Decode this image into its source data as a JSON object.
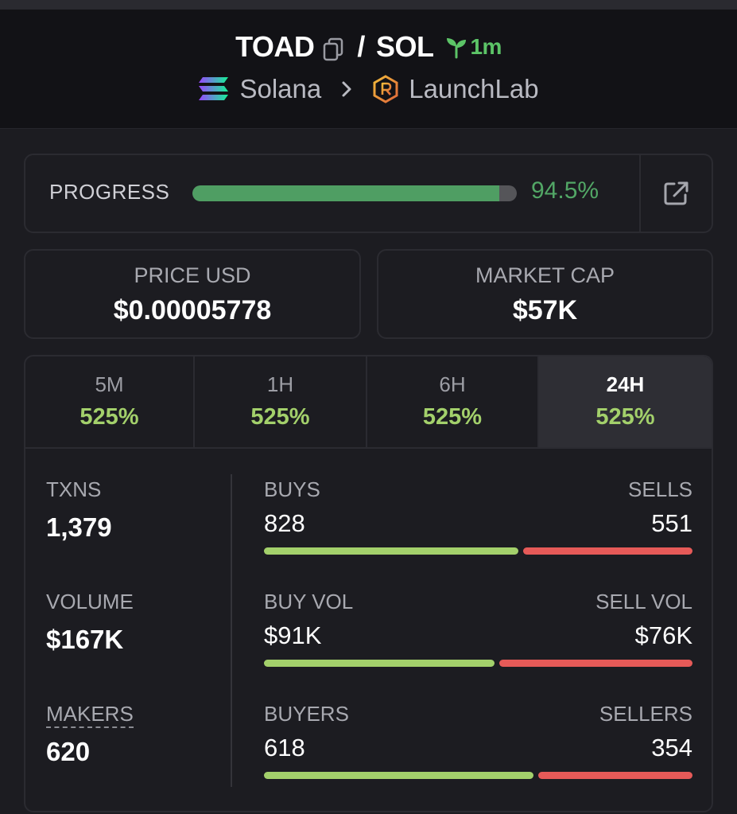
{
  "header": {
    "base_symbol": "TOAD",
    "separator": "/",
    "quote_symbol": "SOL",
    "age": "1m",
    "chain": "Solana",
    "dex": "LaunchLab",
    "icons": [
      "copy-icon",
      "seedling-icon",
      "solana-logo-icon",
      "chevron-right-icon",
      "launchlab-logo-icon"
    ]
  },
  "progress": {
    "label": "PROGRESS",
    "value_text": "94.5%",
    "fraction": 0.945,
    "fill_color": "#4f9e63",
    "external_icon": "external-link-icon"
  },
  "stats": {
    "price": {
      "label": "PRICE USD",
      "value": "$0.00005778"
    },
    "market_cap": {
      "label": "MARKET CAP",
      "value": "$57K"
    }
  },
  "timeframes": [
    {
      "label": "5M",
      "change": "525%",
      "active": false
    },
    {
      "label": "1H",
      "change": "525%",
      "active": false
    },
    {
      "label": "6H",
      "change": "525%",
      "active": false
    },
    {
      "label": "24H",
      "change": "525%",
      "active": true
    }
  ],
  "summary": {
    "txns": {
      "label": "TXNS",
      "value": "1,379"
    },
    "volume": {
      "label": "VOLUME",
      "value": "$167K"
    },
    "makers": {
      "label": "MAKERS",
      "value": "620"
    }
  },
  "metrics": {
    "buys_sells": {
      "left_label": "BUYS",
      "right_label": "SELLS",
      "left_value": "828",
      "right_value": "551",
      "left_share": 0.6
    },
    "vol": {
      "left_label": "BUY VOL",
      "right_label": "SELL VOL",
      "left_value": "$91K",
      "right_value": "$76K",
      "left_share": 0.545
    },
    "participants": {
      "left_label": "BUYERS",
      "right_label": "SELLERS",
      "left_value": "618",
      "right_value": "354",
      "left_share": 0.636
    }
  },
  "colors": {
    "positive": "#a3d06b",
    "negative": "#e65a58",
    "progress": "#52a766",
    "age": "#5cc467"
  }
}
